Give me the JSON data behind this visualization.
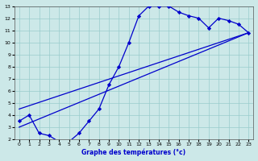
{
  "xlabel": "Graphe des températures (°c)",
  "xlim": [
    -0.5,
    23.5
  ],
  "ylim": [
    2,
    13
  ],
  "xticks": [
    0,
    1,
    2,
    3,
    4,
    5,
    6,
    7,
    8,
    9,
    10,
    11,
    12,
    13,
    14,
    15,
    16,
    17,
    18,
    19,
    20,
    21,
    22,
    23
  ],
  "yticks": [
    2,
    3,
    4,
    5,
    6,
    7,
    8,
    9,
    10,
    11,
    12,
    13
  ],
  "line_color": "#0000cc",
  "bg_color": "#cce8e8",
  "grid_color": "#99cccc",
  "line_width": 0.9,
  "marker": "D",
  "marker_size": 2.2,
  "data_points": [
    [
      0,
      3.5
    ],
    [
      1,
      4.0
    ],
    [
      2,
      2.5
    ],
    [
      3,
      2.3
    ],
    [
      4,
      1.8
    ],
    [
      5,
      1.8
    ],
    [
      6,
      2.5
    ],
    [
      7,
      3.5
    ],
    [
      8,
      4.5
    ],
    [
      9,
      6.5
    ],
    [
      10,
      8.0
    ],
    [
      11,
      10.0
    ],
    [
      12,
      12.2
    ],
    [
      13,
      13.0
    ],
    [
      14,
      13.0
    ],
    [
      15,
      13.0
    ],
    [
      16,
      12.5
    ],
    [
      17,
      12.2
    ],
    [
      18,
      12.0
    ],
    [
      19,
      11.2
    ],
    [
      20,
      12.0
    ],
    [
      21,
      11.8
    ],
    [
      22,
      11.5
    ],
    [
      23,
      10.8
    ]
  ],
  "line2_points": [
    [
      0,
      3.5
    ],
    [
      23,
      10.8
    ]
  ],
  "line3_points": [
    [
      0,
      3.5
    ],
    [
      23,
      10.8
    ]
  ],
  "reg_line1": [
    [
      0,
      4.5
    ],
    [
      23,
      10.8
    ]
  ],
  "reg_line2": [
    [
      0,
      3.0
    ],
    [
      23,
      10.8
    ]
  ]
}
